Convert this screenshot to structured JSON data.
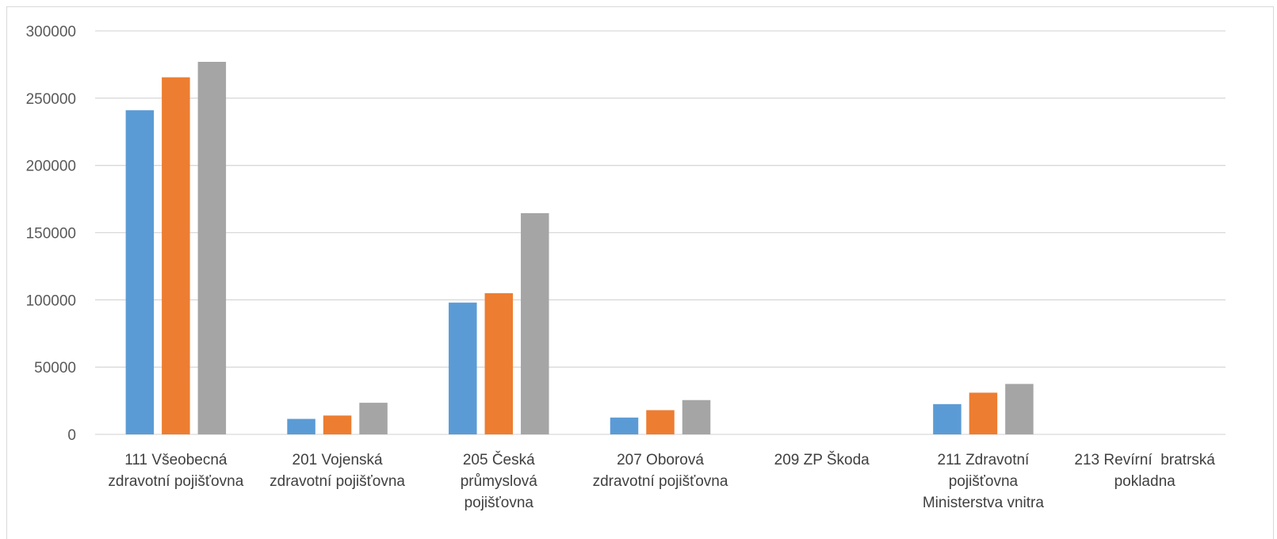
{
  "chart_data": {
    "type": "bar",
    "title": "",
    "xlabel": "",
    "ylabel": "",
    "ylim": [
      0,
      300000
    ],
    "yticks": [
      0,
      50000,
      100000,
      150000,
      200000,
      250000,
      300000
    ],
    "ytick_labels": [
      "0",
      "50000",
      "100000",
      "150000",
      "200000",
      "250000",
      "300000"
    ],
    "grid": "horizontal",
    "legend": "none",
    "categories": [
      [
        "111 Všeobecná",
        "zdravotní pojišťovna"
      ],
      [
        "201 Vojenská",
        "zdravotní pojišťovna"
      ],
      [
        "205 Česká",
        "průmyslová",
        "pojišťovna"
      ],
      [
        "207 Oborová",
        "zdravotní pojišťovna"
      ],
      [
        "209 ZP Škoda"
      ],
      [
        "211 Zdravotní",
        "pojišťovna",
        "Ministerstva vnitra"
      ],
      [
        "213 Revírní  bratrská",
        "pokladna"
      ]
    ],
    "series": [
      {
        "color": "#5b9bd5",
        "values": [
          241000,
          11500,
          98000,
          12500,
          0,
          22500,
          0
        ]
      },
      {
        "color": "#ed7d31",
        "values": [
          265500,
          14000,
          105000,
          18000,
          0,
          31000,
          0
        ]
      },
      {
        "color": "#a5a5a5",
        "values": [
          277000,
          23500,
          164500,
          25500,
          0,
          37500,
          0
        ]
      }
    ],
    "colors": {
      "grid": "#d9d9d9",
      "axis": "#d9d9d9",
      "frame": "#d9d9d9"
    }
  }
}
